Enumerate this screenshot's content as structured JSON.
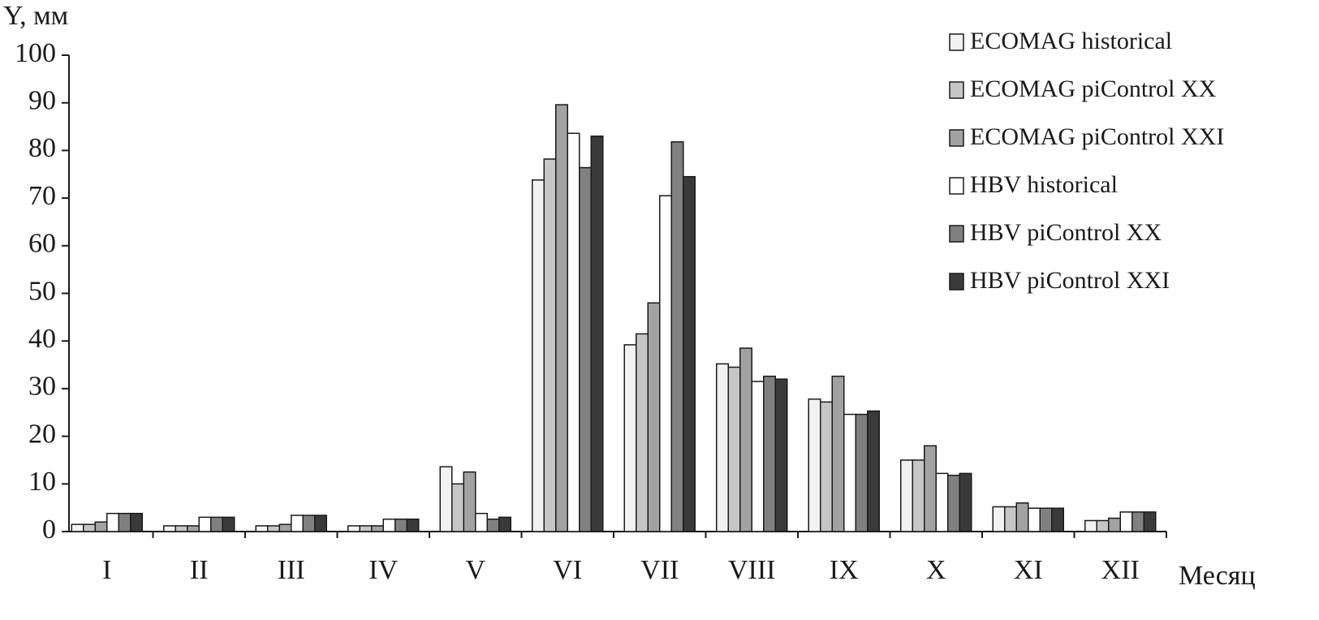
{
  "chart_data": {
    "type": "bar",
    "y_label": "Y, мм",
    "x_label": "Месяц",
    "categories": [
      "I",
      "II",
      "III",
      "IV",
      "V",
      "VI",
      "VII",
      "VIII",
      "IX",
      "X",
      "XI",
      "XII"
    ],
    "series": [
      {
        "name": "ECOMAG historical",
        "color": "#f2f2f2",
        "values": [
          1.5,
          1.2,
          1.2,
          1.2,
          13.6,
          73.8,
          39.2,
          35.2,
          27.8,
          15,
          5.2,
          2.3
        ]
      },
      {
        "name": "ECOMAG piControl XX",
        "color": "#c6c6c6",
        "values": [
          1.5,
          1.2,
          1.2,
          1.2,
          10,
          78.2,
          41.5,
          34.5,
          27.2,
          15,
          5.2,
          2.3
        ]
      },
      {
        "name": "ECOMAG piControl XXI",
        "color": "#a2a2a2",
        "values": [
          2,
          1.2,
          1.5,
          1.2,
          12.5,
          89.6,
          48,
          38.5,
          32.6,
          18,
          6,
          2.8
        ]
      },
      {
        "name": "HBV historical",
        "color": "#ffffff",
        "values": [
          3.8,
          3,
          3.4,
          2.6,
          3.8,
          83.6,
          70.5,
          31.5,
          24.6,
          12.2,
          4.9,
          4.1
        ]
      },
      {
        "name": "HBV piControl XX",
        "color": "#808080",
        "values": [
          3.8,
          3,
          3.4,
          2.6,
          2.6,
          76.4,
          81.8,
          32.6,
          24.6,
          11.8,
          4.9,
          4.1
        ]
      },
      {
        "name": "HBV piControl XXI",
        "color": "#3a3a3a",
        "values": [
          3.8,
          3,
          3.4,
          2.6,
          3,
          83,
          74.5,
          32,
          25.3,
          12.2,
          4.9,
          4.1
        ]
      }
    ],
    "ylim": [
      0,
      100
    ],
    "yticks": [
      0,
      10,
      20,
      30,
      40,
      50,
      60,
      70,
      80,
      90,
      100
    ],
    "grid": false,
    "legend_position": "top-right"
  }
}
